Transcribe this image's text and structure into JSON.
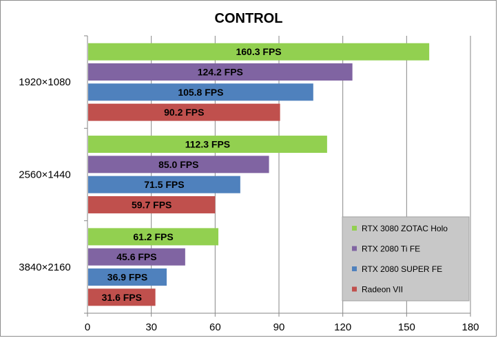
{
  "chart_data": {
    "type": "bar",
    "orientation": "horizontal",
    "title": "CONTROL",
    "xlabel": "",
    "ylabel": "",
    "xlim": [
      0,
      180
    ],
    "x_ticks": [
      0,
      30,
      60,
      90,
      120,
      150,
      180
    ],
    "grid": true,
    "legend_position": "bottom-right",
    "categories": [
      "1920×1080",
      "2560×1440",
      "3840×2160"
    ],
    "series": [
      {
        "name": "RTX 3080 ZOTAC Holo",
        "color": "#92d050",
        "values": [
          160.3,
          112.3,
          61.2
        ],
        "labels": [
          "160.3 FPS",
          "112.3 FPS",
          "61.2 FPS"
        ]
      },
      {
        "name": "RTX 2080 Ti FE",
        "color": "#8064a2",
        "values": [
          124.2,
          85.0,
          45.6
        ],
        "labels": [
          "124.2 FPS",
          "85.0 FPS",
          "45.6 FPS"
        ]
      },
      {
        "name": "RTX 2080 SUPER FE",
        "color": "#4f81bd",
        "values": [
          105.8,
          71.5,
          36.9
        ],
        "labels": [
          "105.8 FPS",
          "71.5 FPS",
          "36.9 FPS"
        ]
      },
      {
        "name": "Radeon VII",
        "color": "#c0504d",
        "values": [
          90.2,
          59.7,
          31.6
        ],
        "labels": [
          "90.2 FPS",
          "59.7 FPS",
          "31.6 FPS"
        ]
      }
    ]
  }
}
